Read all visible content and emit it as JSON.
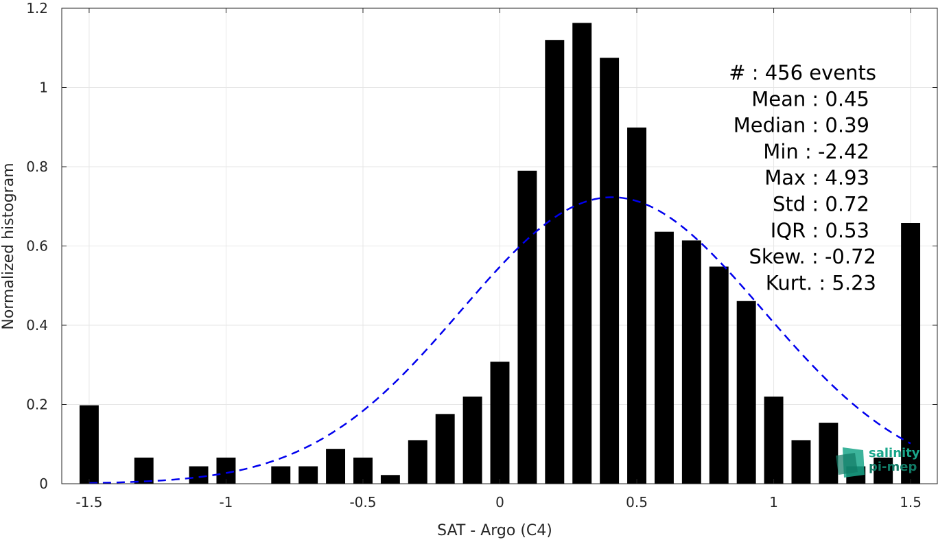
{
  "chart_data": {
    "type": "bar",
    "xlabel": "SAT - Argo (C4)",
    "ylabel": "Normalized histogram",
    "xlim": [
      -1.6,
      1.6
    ],
    "ylim": [
      0,
      1.2
    ],
    "xticks": [
      "-1.5",
      "-1",
      "-0.5",
      "0",
      "0.5",
      "1",
      "1.5"
    ],
    "yticks": [
      "0",
      "0.2",
      "0.4",
      "0.6",
      "0.8",
      "1",
      "1.2"
    ],
    "grid": true,
    "bar_width": 0.07,
    "bars": [
      {
        "x": -1.5,
        "y": 0.198
      },
      {
        "x": -1.3,
        "y": 0.066
      },
      {
        "x": -1.1,
        "y": 0.044
      },
      {
        "x": -1.0,
        "y": 0.066
      },
      {
        "x": -0.8,
        "y": 0.044
      },
      {
        "x": -0.7,
        "y": 0.044
      },
      {
        "x": -0.6,
        "y": 0.088
      },
      {
        "x": -0.5,
        "y": 0.066
      },
      {
        "x": -0.4,
        "y": 0.022
      },
      {
        "x": -0.3,
        "y": 0.11
      },
      {
        "x": -0.2,
        "y": 0.176
      },
      {
        "x": -0.1,
        "y": 0.22
      },
      {
        "x": 0.0,
        "y": 0.308
      },
      {
        "x": 0.1,
        "y": 0.79
      },
      {
        "x": 0.2,
        "y": 1.12
      },
      {
        "x": 0.3,
        "y": 1.163
      },
      {
        "x": 0.4,
        "y": 1.075
      },
      {
        "x": 0.5,
        "y": 0.899
      },
      {
        "x": 0.6,
        "y": 0.636
      },
      {
        "x": 0.7,
        "y": 0.614
      },
      {
        "x": 0.8,
        "y": 0.548
      },
      {
        "x": 0.9,
        "y": 0.461
      },
      {
        "x": 1.0,
        "y": 0.22
      },
      {
        "x": 1.1,
        "y": 0.11
      },
      {
        "x": 1.2,
        "y": 0.154
      },
      {
        "x": 1.3,
        "y": 0.044
      },
      {
        "x": 1.4,
        "y": 0.066
      },
      {
        "x": 1.5,
        "y": 0.658
      }
    ],
    "fit_curve": {
      "style": "dashed",
      "color": "#0000ee",
      "mean": 0.41,
      "std": 0.55,
      "peak": 0.723,
      "x_range": [
        -1.5,
        1.5
      ]
    },
    "stats": [
      {
        "label": "#  : 456 events"
      },
      {
        "label": "Mean : 0.45"
      },
      {
        "label": "Median : 0.39"
      },
      {
        "label": "Min : -2.42"
      },
      {
        "label": "Max : 4.93"
      },
      {
        "label": "Std : 0.72"
      },
      {
        "label": "IQR : 0.53"
      },
      {
        "label": "Skew. : -0.72"
      },
      {
        "label": "Kurt. : 5.23"
      }
    ],
    "logo": {
      "line1": "salinity",
      "line2": "pi-mep",
      "color": "#1aa68a"
    }
  }
}
